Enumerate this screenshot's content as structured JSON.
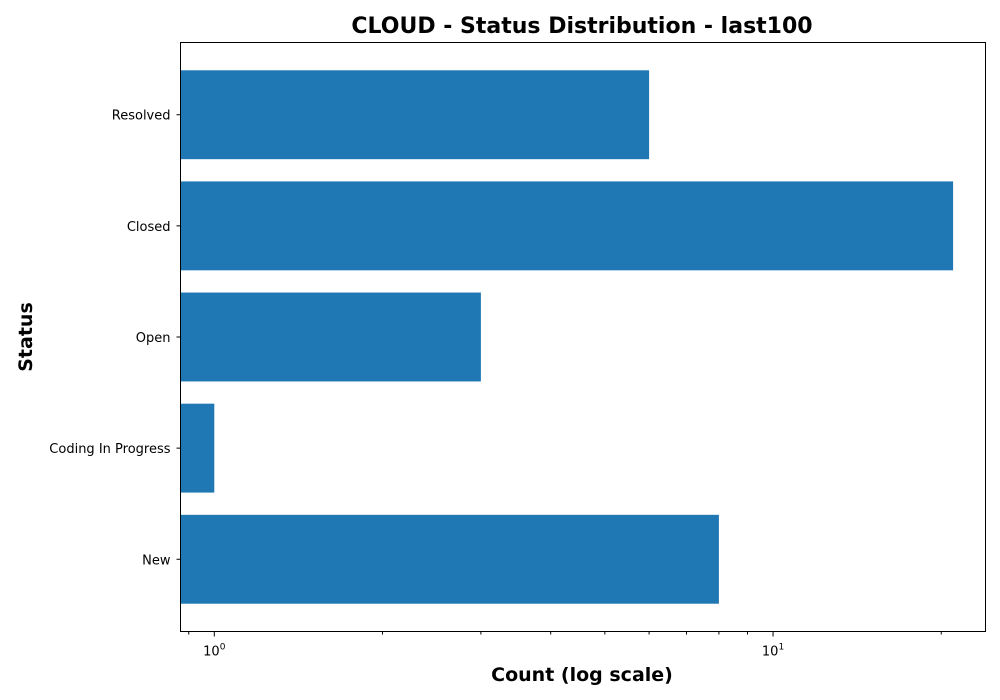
{
  "chart_data": {
    "type": "bar",
    "orientation": "horizontal",
    "title": "CLOUD - Status Distribution - last100",
    "xlabel": "Count (log scale)",
    "ylabel": "Status",
    "x_scale": "log",
    "xlim": [
      0.87,
      24
    ],
    "categories": [
      "Resolved",
      "Closed",
      "Open",
      "Coding In Progress",
      "New"
    ],
    "values": [
      6,
      21,
      3,
      1,
      8
    ],
    "x_ticks": [
      {
        "value": 1,
        "base": "10",
        "exp": "0"
      },
      {
        "value": 10,
        "base": "10",
        "exp": "1"
      }
    ],
    "bar_color": "#1f77b4",
    "grid": false,
    "legend": "none"
  }
}
